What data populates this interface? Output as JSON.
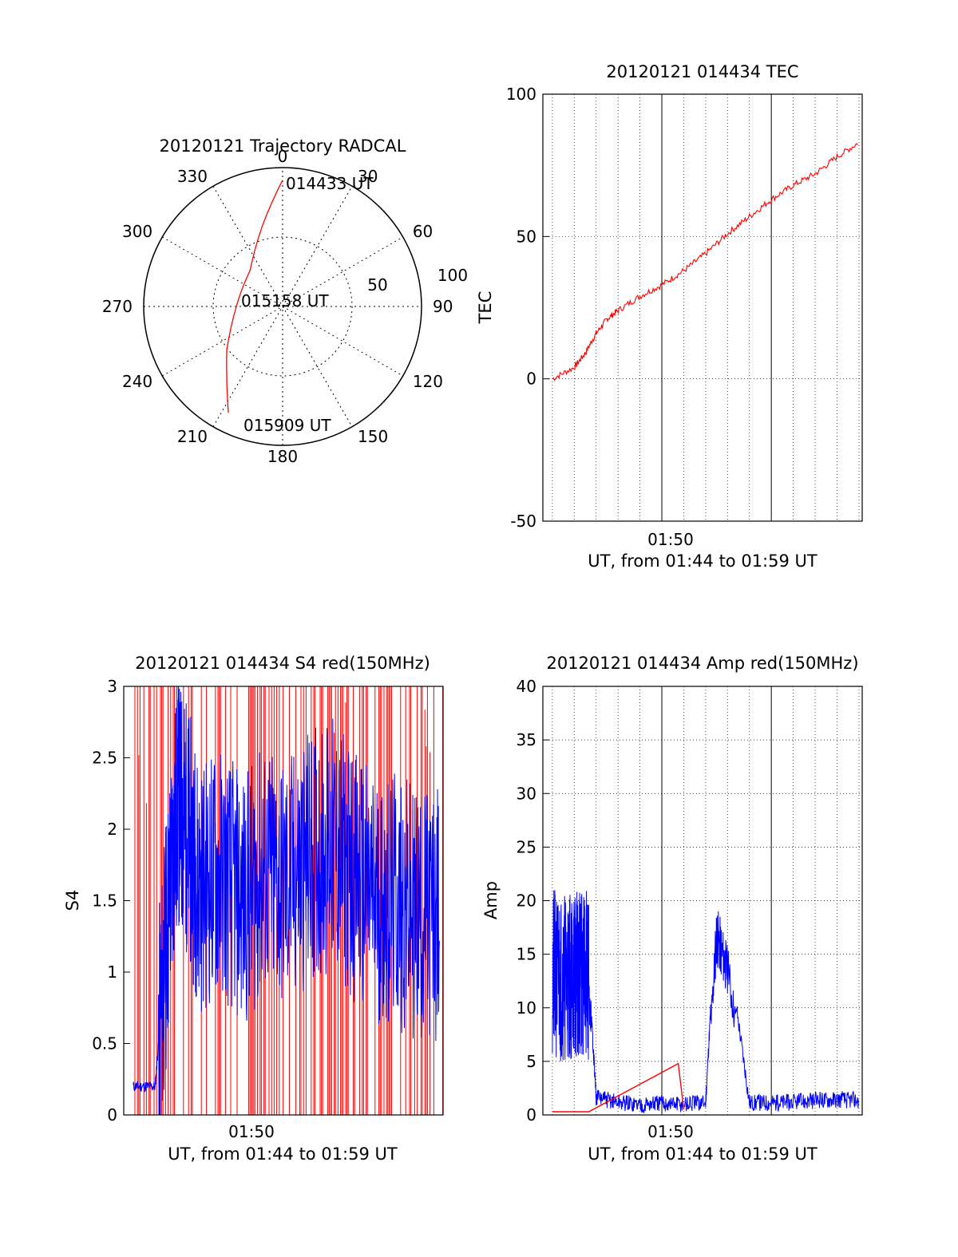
{
  "chart_data": [
    {
      "type": "polar",
      "title": "20120121 Trajectory RADCAL",
      "angle_labels": [
        "0",
        "30",
        "60",
        "90",
        "120",
        "150",
        "180",
        "210",
        "240",
        "270",
        "300",
        "330"
      ],
      "radial_labels": [
        "50",
        "100"
      ],
      "grid": true,
      "series": [
        {
          "color": "#ff0000",
          "points": [
            {
              "az": 0,
              "r": 91
            },
            {
              "az": 346,
              "r": 60
            },
            {
              "az": 318,
              "r": 35
            },
            {
              "az": 272,
              "r": 33
            },
            {
              "az": 232,
              "r": 51
            },
            {
              "az": 207,
              "r": 86
            }
          ]
        }
      ],
      "annotations": [
        "014433 UT",
        "015158 UT",
        "015909 UT"
      ]
    },
    {
      "type": "line",
      "title": "20120121 014434 TEC",
      "ylabel": "TEC",
      "xlabel": "UT, from 01:44 to 01:59 UT",
      "xtick_label": "01:50",
      "ylim": [
        -50,
        100
      ],
      "xlim": [
        "01:44:34",
        "01:59:09"
      ],
      "yticks": [
        "100",
        "50",
        "0",
        "-50"
      ],
      "grid": true,
      "series": [
        {
          "color": "#ff0000",
          "x": [
            "01:45:00",
            "01:46:00",
            "01:46:30",
            "01:47:00",
            "01:47:30",
            "01:48:00",
            "01:49:00",
            "01:50:00",
            "01:51:00",
            "01:52:00",
            "01:53:00",
            "01:54:00",
            "01:55:00",
            "01:56:00",
            "01:57:00",
            "01:58:00",
            "01:59:00"
          ],
          "y": [
            0,
            4,
            9,
            16,
            21,
            24,
            29,
            33,
            38,
            44,
            51,
            57,
            63,
            68,
            72,
            78,
            83
          ]
        }
      ]
    },
    {
      "type": "line",
      "title": "20120121 014434 S4 red(150MHz)",
      "ylabel": "S4",
      "xlabel": "UT, from 01:44 to 01:59 UT",
      "xtick_label": "01:50",
      "ylim": [
        0,
        3
      ],
      "yticks": [
        "3",
        "2.5",
        "2",
        "1.5",
        "1",
        "0.5",
        "0"
      ],
      "grid": false,
      "series": [
        {
          "color": "#ff0000",
          "description_values": {
            "range": [
              0,
              3
            ]
          }
        },
        {
          "color": "#0000ff",
          "x": [
            "01:45:00",
            "01:46:00",
            "01:46:30",
            "01:47:00",
            "01:47:30",
            "01:48:00",
            "01:49:00",
            "01:50:00",
            "01:51:00",
            "01:52:00",
            "01:53:00",
            "01:54:00",
            "01:55:00",
            "01:56:00",
            "01:57:00",
            "01:58:00",
            "01:59:00"
          ],
          "y": [
            0.2,
            0.2,
            1.2,
            2.2,
            2.0,
            1.6,
            1.7,
            1.5,
            1.7,
            1.6,
            1.8,
            1.9,
            1.7,
            1.5,
            1.5,
            1.4,
            1.4
          ]
        }
      ]
    },
    {
      "type": "line",
      "title": "20120121 014434 Amp red(150MHz)",
      "ylabel": "Amp",
      "xlabel": "UT, from 01:44 to 01:59 UT",
      "xtick_label": "01:50",
      "ylim": [
        0,
        40
      ],
      "yticks": [
        "40",
        "35",
        "30",
        "25",
        "20",
        "15",
        "10",
        "5",
        "0"
      ],
      "grid": true,
      "series": [
        {
          "color": "#0000ff",
          "x": [
            "01:45:00",
            "01:46:00",
            "01:46:40",
            "01:47:00",
            "01:48:00",
            "01:49:00",
            "01:50:00",
            "01:51:00",
            "01:52:00",
            "01:52:30",
            "01:53:00",
            "01:54:00",
            "01:55:00",
            "01:56:00",
            "01:57:00",
            "01:58:00",
            "01:59:00"
          ],
          "y": [
            13,
            13,
            13,
            1.5,
            1,
            0.8,
            0.9,
            0.8,
            1.0,
            20,
            16,
            1.0,
            1.0,
            1.0,
            1.2,
            1.3,
            1.2
          ]
        },
        {
          "color": "#ff0000",
          "x": [
            "01:45:00",
            "01:46:40",
            "01:50:45",
            "01:51:00"
          ],
          "y": [
            0.3,
            0.3,
            4.8,
            0.5
          ]
        }
      ]
    }
  ]
}
